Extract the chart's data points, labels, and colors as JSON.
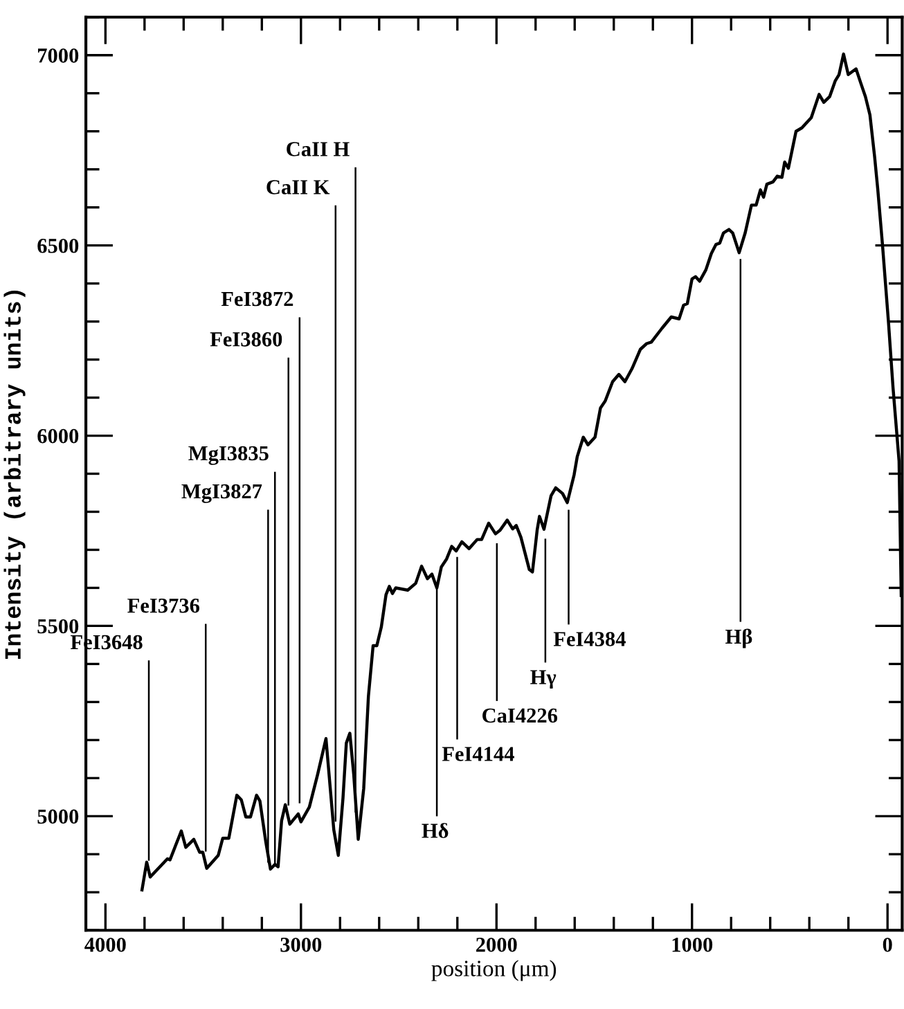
{
  "chart_data": {
    "type": "line",
    "xlabel": "position (μm)",
    "ylabel": "Intensity (arbitrary units)",
    "xlim": [
      4100,
      -75
    ],
    "ylim": [
      4700,
      7100
    ],
    "xticks": [
      4000,
      3000,
      2000,
      1000,
      0
    ],
    "yticks": [
      5000,
      5500,
      6000,
      6500,
      7000
    ],
    "grid": false,
    "legend": false,
    "marker": "none",
    "line_style": "solid",
    "series": [
      {
        "color": "#000000",
        "x": [
          3813,
          3789,
          3771,
          3683,
          3670,
          3612,
          3589,
          3548,
          3518,
          3502,
          3482,
          3423,
          3400,
          3369,
          3328,
          3305,
          3282,
          3258,
          3227,
          3210,
          3180,
          3156,
          3133,
          3117,
          3099,
          3080,
          3057,
          3014,
          3000,
          2957,
          2915,
          2872,
          2832,
          2809,
          2785,
          2768,
          2750,
          2730,
          2707,
          2679,
          2655,
          2631,
          2612,
          2589,
          2565,
          2548,
          2532,
          2515,
          2454,
          2413,
          2383,
          2353,
          2330,
          2305,
          2282,
          2255,
          2229,
          2206,
          2177,
          2140,
          2099,
          2076,
          2040,
          2005,
          1981,
          1945,
          1917,
          1899,
          1875,
          1832,
          1816,
          1792,
          1780,
          1757,
          1721,
          1697,
          1662,
          1638,
          1603,
          1587,
          1556,
          1532,
          1496,
          1468,
          1444,
          1406,
          1374,
          1343,
          1307,
          1264,
          1232,
          1208,
          1154,
          1106,
          1066,
          1043,
          1024,
          1000,
          982,
          961,
          929,
          901,
          877,
          858,
          839,
          811,
          792,
          759,
          728,
          696,
          672,
          650,
          634,
          617,
          586,
          564,
          540,
          526,
          507,
          468,
          438,
          390,
          350,
          326,
          296,
          267,
          248,
          225,
          201,
          161,
          137,
          113,
          90,
          66,
          50,
          26,
          -5,
          -28,
          -59,
          -70
        ],
        "values": [
          4806,
          4879,
          4840,
          4888,
          4885,
          4961,
          4918,
          4939,
          4905,
          4905,
          4863,
          4897,
          4942,
          4942,
          5055,
          5043,
          4998,
          4998,
          5055,
          5040,
          4933,
          4861,
          4873,
          4867,
          4988,
          5030,
          4979,
          5006,
          4985,
          5024,
          5109,
          5204,
          4964,
          4897,
          5048,
          5192,
          5218,
          5109,
          4939,
          5073,
          5315,
          5448,
          5448,
          5497,
          5582,
          5604,
          5585,
          5600,
          5594,
          5612,
          5657,
          5624,
          5636,
          5600,
          5655,
          5676,
          5709,
          5697,
          5721,
          5703,
          5727,
          5727,
          5770,
          5742,
          5752,
          5778,
          5755,
          5764,
          5733,
          5648,
          5642,
          5752,
          5788,
          5754,
          5842,
          5863,
          5848,
          5824,
          5897,
          5945,
          5996,
          5976,
          5996,
          6073,
          6091,
          6142,
          6161,
          6142,
          6176,
          6227,
          6242,
          6246,
          6282,
          6312,
          6307,
          6343,
          6347,
          6412,
          6418,
          6406,
          6436,
          6479,
          6503,
          6506,
          6533,
          6542,
          6533,
          6481,
          6533,
          6606,
          6606,
          6646,
          6627,
          6661,
          6667,
          6682,
          6679,
          6719,
          6703,
          6800,
          6809,
          6836,
          6897,
          6876,
          6891,
          6933,
          6949,
          7003,
          6949,
          6964,
          6927,
          6891,
          6843,
          6733,
          6648,
          6503,
          6297,
          6127,
          5933,
          5580
        ]
      },
      {
        "color": "#000000",
        "x": [
          3778,
          3778
        ],
        "values": [
          4885,
          5407
        ]
      },
      {
        "color": "#000000",
        "x": [
          3487,
          3487
        ],
        "values": [
          4909,
          5503
        ]
      },
      {
        "color": "#000000",
        "x": [
          3168,
          3168
        ],
        "values": [
          4880,
          5803
        ]
      },
      {
        "color": "#000000",
        "x": [
          3133,
          3133
        ],
        "values": [
          4870,
          5903
        ]
      },
      {
        "color": "#000000",
        "x": [
          3064,
          3064
        ],
        "values": [
          5030,
          6203
        ]
      },
      {
        "color": "#000000",
        "x": [
          3007,
          3007
        ],
        "values": [
          5036,
          6309
        ]
      },
      {
        "color": "#000000",
        "x": [
          2823,
          2823
        ],
        "values": [
          4988,
          6603
        ]
      },
      {
        "color": "#000000",
        "x": [
          2721,
          2721
        ],
        "values": [
          5012,
          6703
        ]
      },
      {
        "color": "#000000",
        "x": [
          2305,
          2305
        ],
        "values": [
          5600,
          5002
        ]
      },
      {
        "color": "#000000",
        "x": [
          2201,
          2201
        ],
        "values": [
          5679,
          5204
        ]
      },
      {
        "color": "#000000",
        "x": [
          1998,
          1998
        ],
        "values": [
          5715,
          5305
        ]
      },
      {
        "color": "#000000",
        "x": [
          1750,
          1750
        ],
        "values": [
          5727,
          5406
        ]
      },
      {
        "color": "#000000",
        "x": [
          1631,
          1631
        ],
        "values": [
          5803,
          5506
        ]
      },
      {
        "color": "#000000",
        "x": [
          752,
          752
        ],
        "values": [
          6462,
          5513
        ]
      }
    ],
    "annotations": [
      {
        "text": "FeI3648",
        "x": 3778,
        "y": 5407
      },
      {
        "text": "FeI3736",
        "x": 3487,
        "y": 5503
      },
      {
        "text": "MgI3827",
        "x": 3168,
        "y": 5803
      },
      {
        "text": "MgI3835",
        "x": 3133,
        "y": 5903
      },
      {
        "text": "FeI3860",
        "x": 3064,
        "y": 6203
      },
      {
        "text": "FeI3872",
        "x": 3007,
        "y": 6309
      },
      {
        "text": "CaII K",
        "x": 2823,
        "y": 6603
      },
      {
        "text": "CaII H",
        "x": 2721,
        "y": 6703
      },
      {
        "text": "Hδ",
        "x": 2305,
        "y": 5002
      },
      {
        "text": "FeI4144",
        "x": 2201,
        "y": 5204
      },
      {
        "text": "CaI4226",
        "x": 1998,
        "y": 5305
      },
      {
        "text": "Hγ",
        "x": 1750,
        "y": 5406
      },
      {
        "text": "FeI4384",
        "x": 1631,
        "y": 5506
      },
      {
        "text": "Hβ",
        "x": 752,
        "y": 5513
      }
    ]
  }
}
